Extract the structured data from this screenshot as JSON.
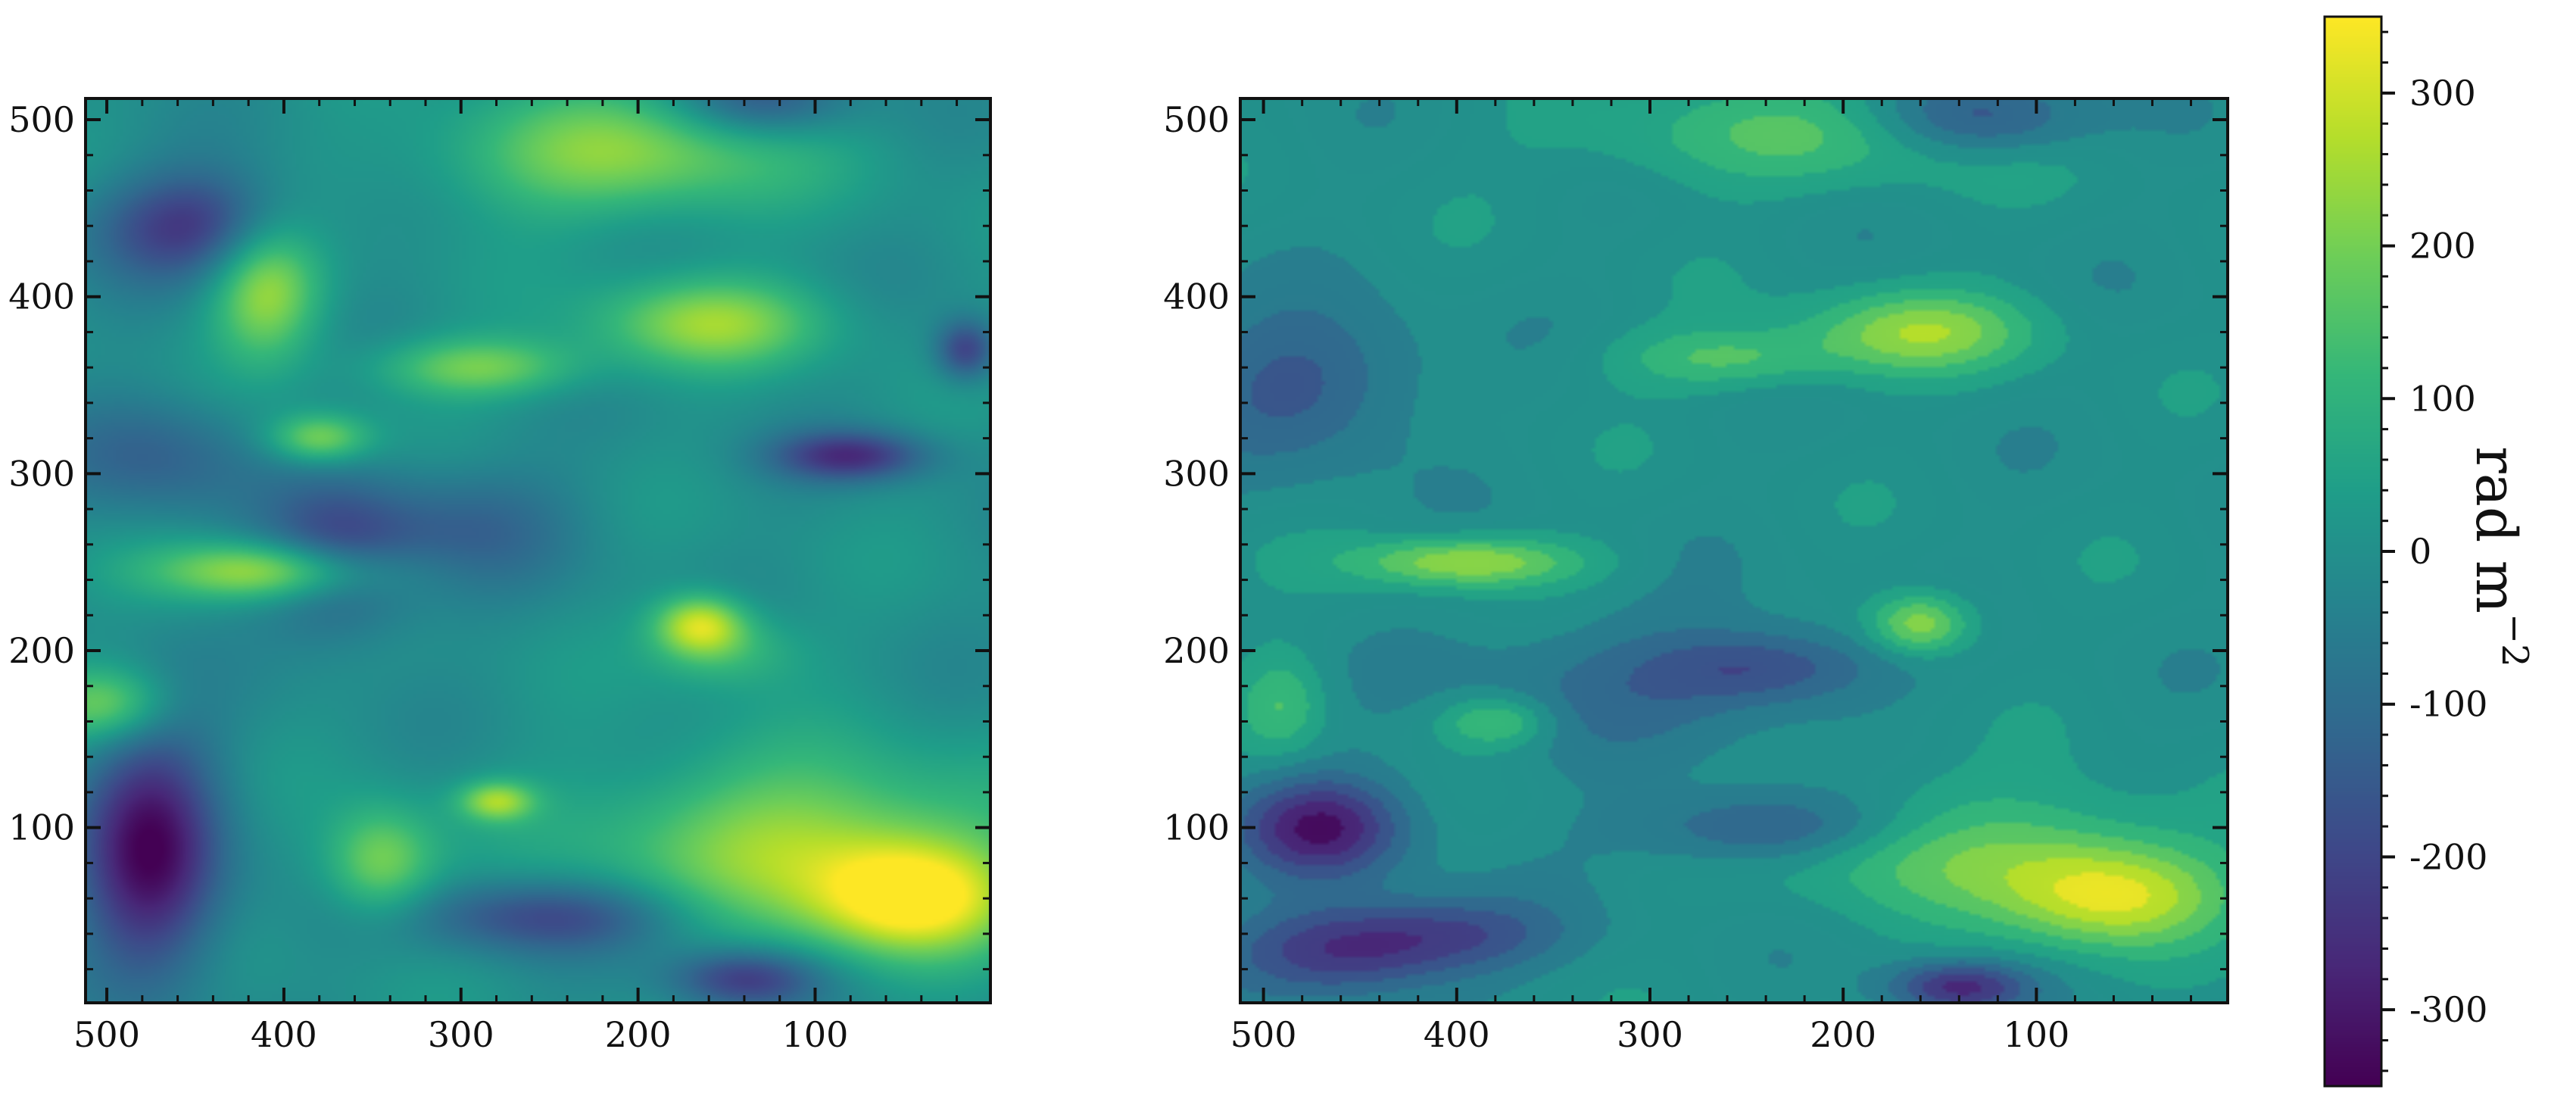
{
  "chart_data": [
    {
      "type": "heatmap",
      "title": "",
      "xlabel": "",
      "ylabel": "",
      "xlim": [
        512,
        1
      ],
      "ylim": [
        1,
        512
      ],
      "x_ticks": [
        500,
        400,
        300,
        200,
        100
      ],
      "y_ticks": [
        100,
        200,
        300,
        400,
        500
      ],
      "x_tick_labels": [
        "500",
        "400",
        "300",
        "200",
        "100"
      ],
      "y_tick_labels": [
        "100",
        "200",
        "300",
        "400",
        "500"
      ],
      "colormap": "viridis",
      "value_range": [
        -350,
        350
      ],
      "texture": "smooth",
      "features": [
        {
          "x": 45,
          "y": 60,
          "value": 330,
          "sx": 40,
          "sy": 22
        },
        {
          "x": 110,
          "y": 90,
          "value": 240,
          "sx": 80,
          "sy": 35
        },
        {
          "x": 165,
          "y": 215,
          "value": 280,
          "sx": 18,
          "sy": 12
        },
        {
          "x": 405,
          "y": 245,
          "value": 300,
          "sx": 45,
          "sy": 12
        },
        {
          "x": 160,
          "y": 385,
          "value": 230,
          "sx": 45,
          "sy": 18
        },
        {
          "x": 290,
          "y": 360,
          "value": 200,
          "sx": 40,
          "sy": 12
        },
        {
          "x": 410,
          "y": 405,
          "value": 260,
          "sx": 22,
          "sy": 28
        },
        {
          "x": 210,
          "y": 480,
          "value": 220,
          "sx": 70,
          "sy": 25
        },
        {
          "x": 345,
          "y": 80,
          "value": 220,
          "sx": 22,
          "sy": 22
        },
        {
          "x": 280,
          "y": 115,
          "value": 230,
          "sx": 15,
          "sy": 8
        },
        {
          "x": 500,
          "y": 170,
          "value": 200,
          "sx": 25,
          "sy": 15
        },
        {
          "x": 380,
          "y": 320,
          "value": 220,
          "sx": 20,
          "sy": 10
        },
        {
          "x": 150,
          "y": 200,
          "value": 120,
          "sx": 30,
          "sy": 15
        },
        {
          "x": 475,
          "y": 85,
          "value": -330,
          "sx": 28,
          "sy": 50
        },
        {
          "x": 450,
          "y": 440,
          "value": -240,
          "sx": 40,
          "sy": 22
        },
        {
          "x": 80,
          "y": 310,
          "value": -250,
          "sx": 30,
          "sy": 10
        },
        {
          "x": 370,
          "y": 250,
          "value": -200,
          "sx": 30,
          "sy": 30
        },
        {
          "x": 250,
          "y": 50,
          "value": -200,
          "sx": 55,
          "sy": 15
        },
        {
          "x": 140,
          "y": 15,
          "value": -230,
          "sx": 30,
          "sy": 12
        },
        {
          "x": 15,
          "y": 370,
          "value": -220,
          "sx": 12,
          "sy": 12
        },
        {
          "x": 470,
          "y": 310,
          "value": -130,
          "sx": 40,
          "sy": 25
        },
        {
          "x": 300,
          "y": 270,
          "value": -120,
          "sx": 45,
          "sy": 25
        },
        {
          "x": 130,
          "y": 510,
          "value": -170,
          "sx": 35,
          "sy": 15
        }
      ]
    },
    {
      "type": "heatmap",
      "title": "",
      "xlabel": "",
      "ylabel": "",
      "xlim": [
        512,
        1
      ],
      "ylim": [
        1,
        512
      ],
      "x_ticks": [
        500,
        400,
        300,
        200,
        100
      ],
      "y_ticks": [
        100,
        200,
        300,
        400,
        500
      ],
      "x_tick_labels": [
        "500",
        "400",
        "300",
        "200",
        "100"
      ],
      "y_tick_labels": [
        "100",
        "200",
        "300",
        "400",
        "500"
      ],
      "colormap": "viridis",
      "value_range": [
        -350,
        350
      ],
      "texture": "patchy",
      "features": [
        {
          "x": 60,
          "y": 60,
          "value": 270,
          "sx": 40,
          "sy": 20
        },
        {
          "x": 120,
          "y": 85,
          "value": 170,
          "sx": 70,
          "sy": 25
        },
        {
          "x": 160,
          "y": 215,
          "value": 250,
          "sx": 18,
          "sy": 12
        },
        {
          "x": 395,
          "y": 250,
          "value": 250,
          "sx": 40,
          "sy": 10
        },
        {
          "x": 160,
          "y": 380,
          "value": 230,
          "sx": 40,
          "sy": 16
        },
        {
          "x": 260,
          "y": 365,
          "value": 150,
          "sx": 40,
          "sy": 12
        },
        {
          "x": 380,
          "y": 160,
          "value": 170,
          "sx": 20,
          "sy": 10
        },
        {
          "x": 220,
          "y": 490,
          "value": 140,
          "sx": 80,
          "sy": 20
        },
        {
          "x": 490,
          "y": 170,
          "value": 130,
          "sx": 15,
          "sy": 20
        },
        {
          "x": 200,
          "y": 100,
          "value": 80,
          "sx": 40,
          "sy": 20
        },
        {
          "x": 470,
          "y": 100,
          "value": -300,
          "sx": 30,
          "sy": 20
        },
        {
          "x": 460,
          "y": 30,
          "value": -240,
          "sx": 40,
          "sy": 18
        },
        {
          "x": 230,
          "y": 100,
          "value": -220,
          "sx": 50,
          "sy": 15
        },
        {
          "x": 240,
          "y": 190,
          "value": -180,
          "sx": 40,
          "sy": 15
        },
        {
          "x": 130,
          "y": 500,
          "value": -200,
          "sx": 40,
          "sy": 15
        },
        {
          "x": 140,
          "y": 10,
          "value": -260,
          "sx": 25,
          "sy": 10
        },
        {
          "x": 480,
          "y": 350,
          "value": -160,
          "sx": 40,
          "sy": 30
        },
        {
          "x": 400,
          "y": 40,
          "value": -160,
          "sx": 40,
          "sy": 15
        },
        {
          "x": 320,
          "y": 180,
          "value": -90,
          "sx": 60,
          "sy": 30
        }
      ]
    }
  ],
  "colorbar": {
    "colormap": "viridis",
    "range": [
      -350,
      350
    ],
    "ticks": [
      300,
      200,
      100,
      0,
      -100,
      -200,
      -300
    ],
    "tick_labels": [
      "300",
      "200",
      "100",
      "0",
      "-100",
      "-200",
      "-300"
    ],
    "label_base": "rad m",
    "label_exponent": "−2"
  }
}
